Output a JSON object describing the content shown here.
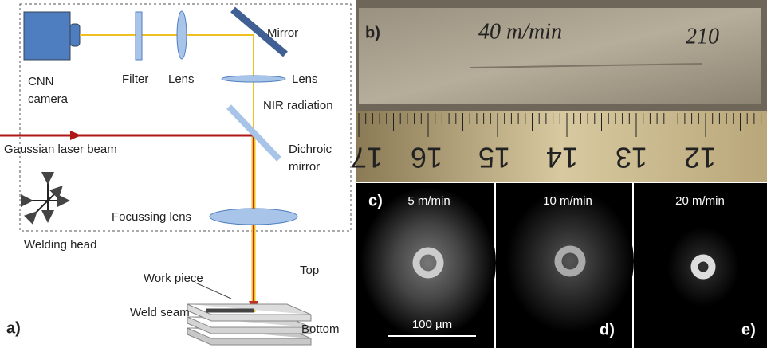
{
  "panel_a": {
    "label": "a)",
    "camera": [
      "CNN",
      "camera"
    ],
    "filter": "Filter",
    "lens_1": "Lens",
    "mirror": "Mirror",
    "lens_2": "Lens",
    "nir": "NIR radiation",
    "laser": "Gaussian laser beam",
    "dichroic": [
      "Dichroic",
      "mirror"
    ],
    "focussing_lens": "Focussing lens",
    "welding_head": "Welding head",
    "work_piece": "Work piece",
    "top": "Top",
    "weld_seam": "Weld seam",
    "bottom": "Bottom"
  },
  "panel_b": {
    "label": "b)",
    "handwriting": [
      "40 m/min",
      "210"
    ],
    "ruler_numbers": [
      "17",
      "16",
      "15",
      "14",
      "13",
      "12"
    ]
  },
  "panel_c": {
    "label": "c)",
    "speed": "5 m/min",
    "scale_bar": "100 µm"
  },
  "panel_d": {
    "label": "d)",
    "speed": "10 m/min"
  },
  "panel_e": {
    "label": "e)",
    "speed": "20 m/min"
  }
}
